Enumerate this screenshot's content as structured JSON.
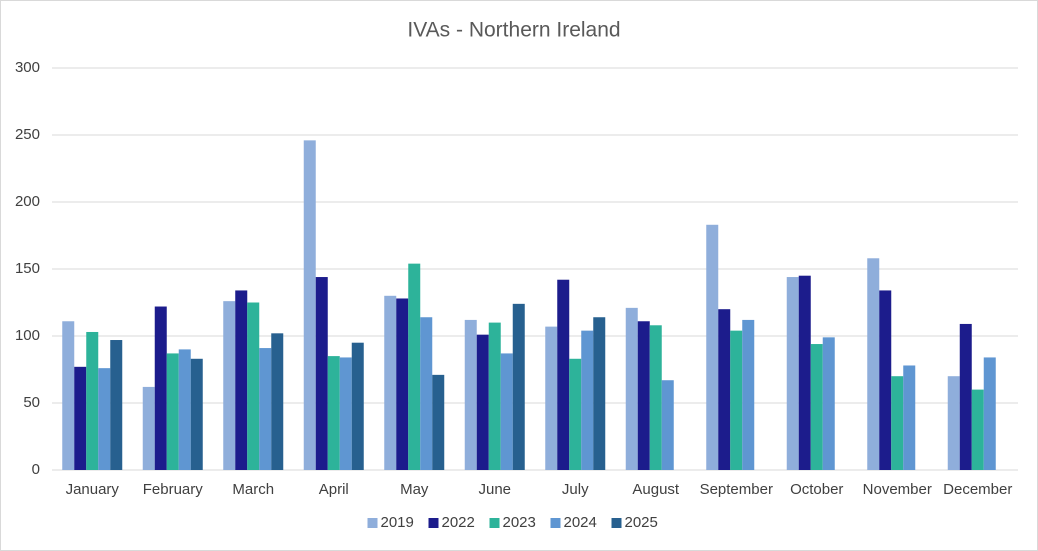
{
  "chart_data": {
    "type": "bar",
    "title": "IVAs - Northern Ireland",
    "categories": [
      "January",
      "February",
      "March",
      "April",
      "May",
      "June",
      "July",
      "August",
      "September",
      "October",
      "November",
      "December"
    ],
    "series": [
      {
        "name": "2019",
        "color": "#8faedb",
        "values": [
          111,
          62,
          126,
          246,
          130,
          112,
          107,
          121,
          183,
          144,
          158,
          70
        ]
      },
      {
        "name": "2022",
        "color": "#1c1c8c",
        "values": [
          77,
          122,
          134,
          144,
          128,
          101,
          142,
          111,
          120,
          145,
          134,
          109
        ]
      },
      {
        "name": "2023",
        "color": "#2db39a",
        "values": [
          103,
          87,
          125,
          85,
          154,
          110,
          83,
          108,
          104,
          94,
          70,
          60
        ]
      },
      {
        "name": "2024",
        "color": "#5f96d2",
        "values": [
          76,
          90,
          91,
          84,
          114,
          87,
          104,
          67,
          112,
          99,
          78,
          84
        ]
      },
      {
        "name": "2025",
        "color": "#27608f",
        "values": [
          97,
          83,
          102,
          95,
          71,
          124,
          114,
          null,
          null,
          null,
          null,
          null
        ]
      }
    ],
    "ylim": [
      0,
      300
    ],
    "yticks": [
      0,
      50,
      100,
      150,
      200,
      250,
      300
    ],
    "grid": true,
    "legend": "bottom"
  }
}
